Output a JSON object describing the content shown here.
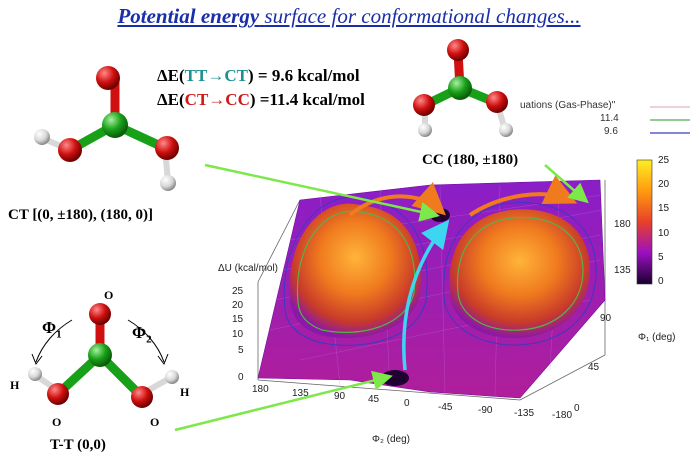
{
  "title": {
    "emphasis": "Potential energy",
    "rest": "surface for conformational changes..."
  },
  "energies": [
    {
      "prefix": "ΔE(",
      "trans": "TT→CT",
      "suffix": ") =  9.6 kcal/mol",
      "trans_color": "#1e8f8f"
    },
    {
      "prefix": "ΔE(",
      "trans": "CT→CC",
      "suffix": ") =11.4 kcal/mol",
      "trans_color": "#d01818"
    }
  ],
  "conformers": {
    "ct": "CT [(0, ±180), (180, 0)]",
    "cc": "CC (180, ±180)",
    "tt": "T-T  (0,0)"
  },
  "molecule_labels": {
    "O_top": "O",
    "O_left": "O",
    "O_right": "O",
    "H_left": "H",
    "H_right": "H",
    "phi1": "Φ",
    "phi1_sub": "1",
    "phi2": "Φ",
    "phi2_sub": "2"
  },
  "plot": {
    "legend": [
      {
        "label": "uations (Gas-Phase)\"",
        "color": "#e0a0b0"
      },
      {
        "label": "11.4",
        "color": "#4caf50"
      },
      {
        "label": "9.6",
        "color": "#3a3ac0"
      }
    ],
    "colorbar_ticks": [
      "25",
      "20",
      "15",
      "10",
      "5",
      "0"
    ],
    "z_axis_label": "ΔU (kcal/mol)",
    "z_ticks": [
      "25",
      "20",
      "15",
      "10",
      "5",
      "0"
    ],
    "phi2_ticks": [
      "180",
      "135",
      "90",
      "45",
      "0",
      "-45",
      "-90",
      "-135",
      "-180"
    ],
    "phi2_label": "Φ₂ (deg)",
    "phi1_ticks": [
      "180",
      "135",
      "90",
      "45",
      "0"
    ],
    "phi1_label": "Φ₁ (deg)"
  }
}
